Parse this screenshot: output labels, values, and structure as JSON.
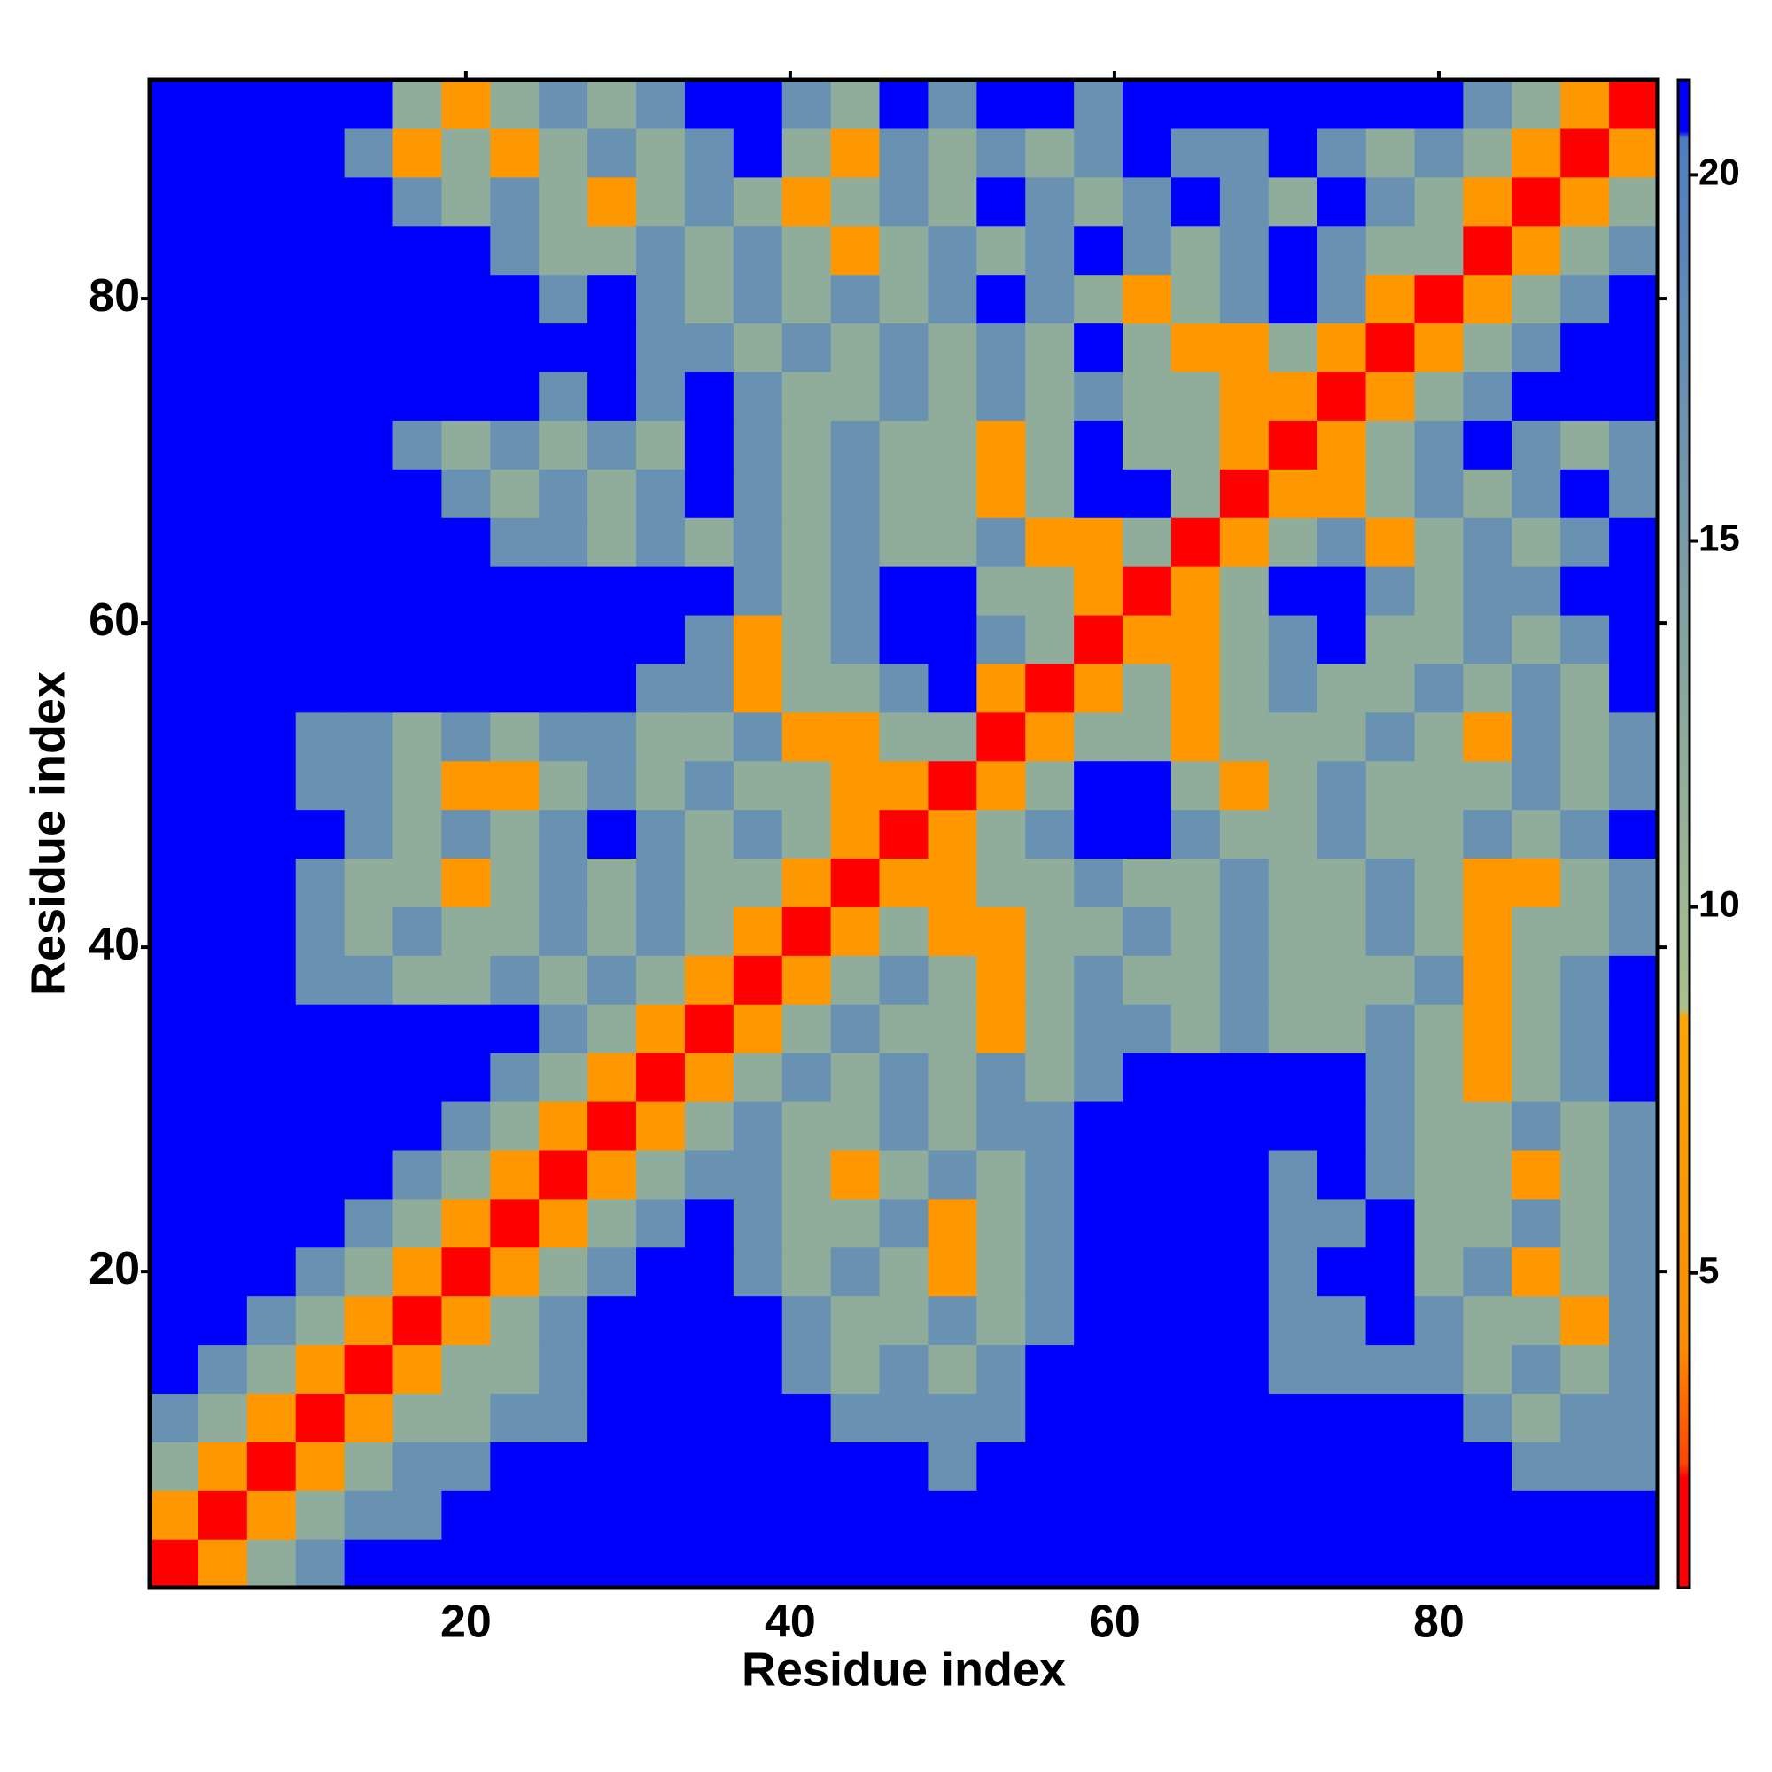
{
  "chart_data": {
    "type": "heatmap",
    "xlabel": "Residue index",
    "ylabel": "Residue index",
    "x": [
      2,
      5,
      8,
      11,
      14,
      17,
      20,
      23,
      26,
      29,
      32,
      35,
      38,
      41,
      44,
      47,
      50,
      53,
      56,
      59,
      62,
      65,
      68,
      71,
      74,
      77,
      80,
      83,
      86,
      89,
      92
    ],
    "y": [
      2,
      5,
      8,
      11,
      14,
      17,
      20,
      23,
      26,
      29,
      32,
      35,
      38,
      41,
      44,
      47,
      50,
      53,
      56,
      59,
      62,
      65,
      68,
      71,
      74,
      77,
      80,
      83,
      86,
      89,
      92
    ],
    "z": [
      [
        1.5,
        6,
        12,
        17,
        21,
        21,
        21,
        21,
        21,
        21,
        21,
        21,
        21,
        21,
        21,
        21,
        21,
        21,
        21,
        21,
        21,
        21,
        21,
        21,
        21,
        21,
        21,
        21,
        21,
        21,
        21
      ],
      [
        6,
        1.5,
        6,
        12,
        17,
        17,
        21,
        21,
        21,
        21,
        21,
        21,
        21,
        21,
        21,
        21,
        21,
        21,
        21,
        21,
        21,
        21,
        21,
        21,
        21,
        21,
        21,
        21,
        21,
        21,
        21
      ],
      [
        12,
        6,
        1.5,
        6,
        12,
        17,
        17,
        21,
        21,
        21,
        21,
        21,
        21,
        21,
        21,
        21,
        17,
        21,
        21,
        21,
        21,
        21,
        21,
        21,
        21,
        21,
        21,
        21,
        17,
        17,
        17
      ],
      [
        17,
        12,
        6,
        1.5,
        6,
        12,
        12,
        17,
        17,
        21,
        21,
        21,
        21,
        21,
        17,
        17,
        17,
        17,
        21,
        21,
        21,
        21,
        21,
        21,
        21,
        21,
        21,
        17,
        12,
        17,
        17
      ],
      [
        21,
        17,
        12,
        6,
        1.5,
        6,
        12,
        12,
        17,
        21,
        21,
        21,
        21,
        17,
        12,
        17,
        12,
        17,
        21,
        21,
        21,
        21,
        21,
        17,
        17,
        17,
        17,
        12,
        17,
        12,
        17
      ],
      [
        21,
        21,
        17,
        12,
        6,
        1.5,
        6,
        12,
        17,
        21,
        21,
        21,
        21,
        17,
        12,
        12,
        17,
        12,
        17,
        21,
        21,
        21,
        21,
        17,
        17,
        21,
        17,
        12,
        12,
        6,
        17
      ],
      [
        21,
        21,
        21,
        17,
        12,
        6,
        1.5,
        6,
        12,
        17,
        21,
        21,
        17,
        12,
        17,
        12,
        6,
        12,
        17,
        21,
        21,
        21,
        21,
        17,
        21,
        21,
        12,
        17,
        6,
        12,
        17
      ],
      [
        21,
        21,
        21,
        21,
        17,
        12,
        6,
        1.5,
        6,
        12,
        17,
        21,
        17,
        12,
        12,
        17,
        6,
        12,
        17,
        21,
        21,
        21,
        21,
        17,
        17,
        21,
        12,
        12,
        17,
        12,
        17
      ],
      [
        21,
        21,
        21,
        21,
        21,
        17,
        12,
        6,
        1.5,
        6,
        12,
        17,
        17,
        12,
        6,
        12,
        17,
        12,
        17,
        21,
        21,
        21,
        21,
        17,
        21,
        17,
        12,
        12,
        6,
        12,
        17
      ],
      [
        21,
        21,
        21,
        21,
        21,
        21,
        17,
        12,
        6,
        1.5,
        6,
        12,
        17,
        12,
        12,
        17,
        12,
        17,
        17,
        21,
        21,
        21,
        21,
        21,
        21,
        17,
        12,
        12,
        17,
        12,
        17
      ],
      [
        21,
        21,
        21,
        21,
        21,
        21,
        21,
        17,
        12,
        6,
        1.5,
        6,
        12,
        17,
        12,
        17,
        12,
        17,
        12,
        17,
        21,
        21,
        21,
        21,
        21,
        17,
        12,
        6,
        12,
        17,
        21
      ],
      [
        21,
        21,
        21,
        21,
        21,
        21,
        21,
        21,
        17,
        12,
        6,
        1.5,
        6,
        12,
        17,
        12,
        12,
        6,
        12,
        17,
        17,
        12,
        17,
        12,
        12,
        17,
        12,
        6,
        12,
        17,
        21
      ],
      [
        21,
        21,
        21,
        17,
        17,
        12,
        12,
        17,
        12,
        17,
        12,
        6,
        1.5,
        6,
        12,
        17,
        12,
        6,
        12,
        17,
        12,
        12,
        17,
        12,
        12,
        12,
        17,
        6,
        12,
        17,
        21
      ],
      [
        21,
        21,
        21,
        17,
        12,
        17,
        12,
        12,
        17,
        12,
        17,
        12,
        6,
        1.5,
        6,
        12,
        6,
        6,
        12,
        12,
        17,
        12,
        17,
        12,
        12,
        17,
        12,
        6,
        12,
        12,
        17
      ],
      [
        21,
        21,
        21,
        17,
        12,
        12,
        6,
        12,
        17,
        12,
        17,
        12,
        12,
        6,
        1.5,
        6,
        6,
        12,
        12,
        17,
        12,
        12,
        17,
        12,
        12,
        17,
        12,
        6,
        6,
        12,
        17
      ],
      [
        21,
        21,
        21,
        21,
        17,
        12,
        17,
        12,
        17,
        21,
        17,
        12,
        17,
        12,
        6,
        1.5,
        6,
        12,
        17,
        21,
        21,
        17,
        12,
        12,
        17,
        12,
        12,
        17,
        12,
        17,
        21
      ],
      [
        21,
        21,
        21,
        17,
        17,
        12,
        6,
        6,
        12,
        17,
        12,
        17,
        12,
        12,
        6,
        6,
        1.5,
        6,
        12,
        21,
        21,
        12,
        6,
        12,
        17,
        12,
        12,
        12,
        17,
        12,
        17
      ],
      [
        21,
        21,
        21,
        17,
        17,
        12,
        17,
        12,
        17,
        17,
        12,
        12,
        17,
        6,
        6,
        12,
        12,
        1.5,
        6,
        12,
        12,
        6,
        12,
        12,
        12,
        17,
        12,
        6,
        17,
        12,
        17
      ],
      [
        21,
        21,
        21,
        21,
        21,
        21,
        21,
        21,
        21,
        21,
        17,
        17,
        6,
        12,
        12,
        17,
        21,
        6,
        1.5,
        6,
        12,
        6,
        12,
        17,
        12,
        12,
        17,
        12,
        17,
        12,
        21
      ],
      [
        21,
        21,
        21,
        21,
        21,
        21,
        21,
        21,
        21,
        21,
        21,
        17,
        6,
        12,
        17,
        21,
        21,
        17,
        12,
        1.5,
        6,
        6,
        12,
        17,
        21,
        12,
        12,
        17,
        12,
        17,
        21
      ],
      [
        21,
        21,
        21,
        21,
        21,
        21,
        21,
        21,
        21,
        21,
        21,
        21,
        17,
        12,
        17,
        21,
        21,
        12,
        12,
        6,
        1.5,
        6,
        12,
        21,
        21,
        17,
        12,
        17,
        17,
        21,
        21
      ],
      [
        21,
        21,
        21,
        21,
        21,
        21,
        21,
        17,
        17,
        12,
        17,
        12,
        17,
        12,
        17,
        12,
        12,
        17,
        6,
        6,
        12,
        1.5,
        6,
        12,
        17,
        6,
        12,
        17,
        12,
        17,
        21
      ],
      [
        21,
        21,
        21,
        21,
        21,
        21,
        17,
        12,
        17,
        12,
        17,
        21,
        17,
        12,
        17,
        12,
        12,
        6,
        12,
        21,
        21,
        12,
        1.5,
        6,
        6,
        12,
        17,
        12,
        17,
        21,
        17
      ],
      [
        21,
        21,
        21,
        21,
        21,
        17,
        12,
        17,
        12,
        17,
        12,
        21,
        17,
        12,
        17,
        12,
        12,
        6,
        12,
        21,
        12,
        12,
        6,
        1.5,
        6,
        12,
        17,
        21,
        17,
        12,
        17
      ],
      [
        21,
        21,
        21,
        21,
        21,
        21,
        21,
        21,
        17,
        21,
        17,
        21,
        17,
        12,
        12,
        17,
        12,
        17,
        12,
        17,
        12,
        12,
        6,
        6,
        1.5,
        6,
        12,
        17,
        21,
        21,
        21
      ],
      [
        21,
        21,
        21,
        21,
        21,
        21,
        21,
        21,
        21,
        21,
        17,
        17,
        12,
        17,
        12,
        17,
        12,
        17,
        12,
        21,
        12,
        6,
        6,
        12,
        6,
        1.5,
        6,
        12,
        17,
        21,
        21
      ],
      [
        21,
        21,
        21,
        21,
        21,
        21,
        21,
        21,
        17,
        21,
        17,
        12,
        17,
        12,
        17,
        12,
        17,
        21,
        17,
        12,
        6,
        12,
        17,
        21,
        17,
        6,
        1.5,
        6,
        12,
        17,
        21
      ],
      [
        21,
        21,
        21,
        21,
        21,
        21,
        21,
        17,
        12,
        12,
        17,
        12,
        17,
        12,
        6,
        12,
        17,
        12,
        17,
        21,
        17,
        12,
        17,
        21,
        17,
        12,
        12,
        1.5,
        6,
        12,
        17
      ],
      [
        21,
        21,
        21,
        21,
        21,
        17,
        12,
        17,
        12,
        6,
        12,
        17,
        12,
        6,
        12,
        17,
        12,
        21,
        17,
        12,
        17,
        21,
        17,
        12,
        21,
        17,
        12,
        6,
        1.5,
        6,
        12
      ],
      [
        21,
        21,
        21,
        21,
        17,
        6,
        12,
        6,
        12,
        17,
        12,
        17,
        21,
        12,
        6,
        17,
        12,
        17,
        12,
        17,
        21,
        17,
        17,
        21,
        17,
        12,
        17,
        12,
        6,
        1.5,
        6
      ],
      [
        21,
        21,
        21,
        21,
        21,
        12,
        6,
        12,
        17,
        12,
        17,
        21,
        21,
        17,
        12,
        21,
        17,
        21,
        21,
        17,
        21,
        21,
        21,
        21,
        21,
        21,
        21,
        17,
        12,
        6,
        1.5
      ]
    ],
    "xlim": [
      0.5,
      93.5
    ],
    "ylim": [
      0.5,
      93.5
    ],
    "xticks": [
      20,
      40,
      60,
      80
    ],
    "yticks": [
      20,
      40,
      60,
      80
    ],
    "colorbar": {
      "lim": [
        0.7,
        21.3
      ],
      "ticks": [
        5,
        10,
        15,
        20
      ]
    },
    "colorscale": [
      [
        0.7,
        "#ff0000"
      ],
      [
        2.2,
        "#ff0000"
      ],
      [
        2.4,
        "#ff4500"
      ],
      [
        4,
        "#ff8c00"
      ],
      [
        8.5,
        "#ffa500"
      ],
      [
        8.6,
        "#a8c08a"
      ],
      [
        20.5,
        "#4f7dc2"
      ],
      [
        20.6,
        "#0000ff"
      ],
      [
        21.3,
        "#0000ff"
      ]
    ]
  }
}
